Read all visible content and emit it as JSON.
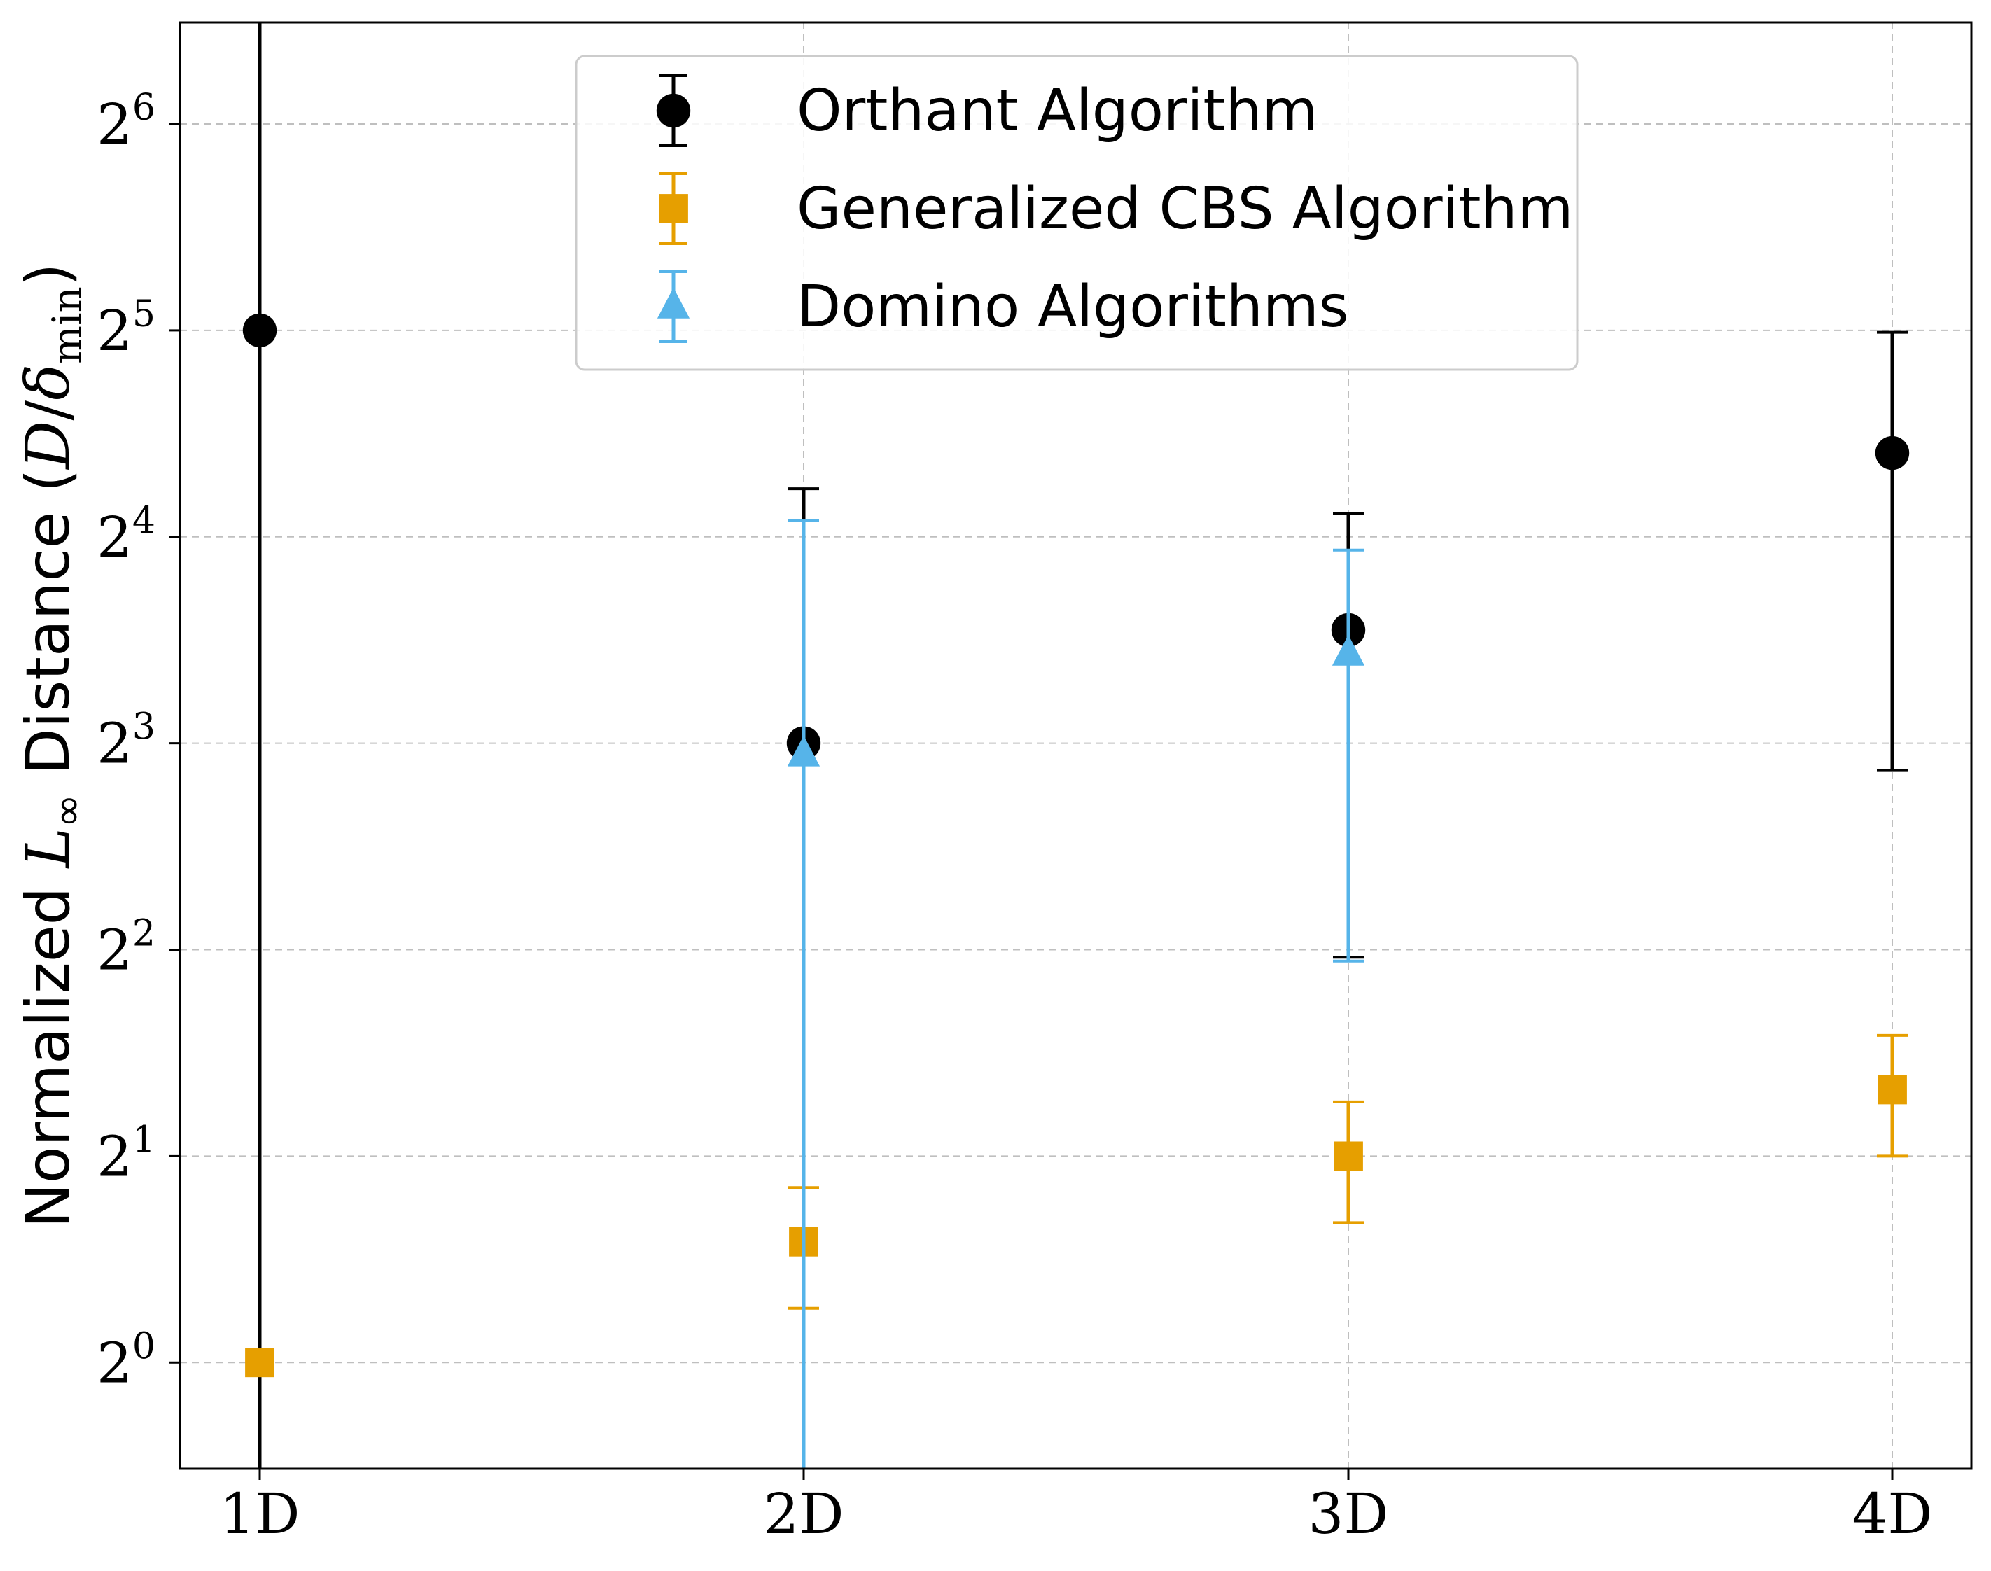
{
  "chart_data": {
    "type": "scatter",
    "title": "",
    "xlabel": "",
    "ylabel": {
      "prefix": "Normalized ",
      "math_var": "L",
      "math_sub": "∞",
      "middle": " Distance (",
      "num": "D",
      "slash": "/",
      "delta": "δ",
      "delta_sub": "min",
      "suffix": ")"
    },
    "y_scale": "log2",
    "ylim": [
      0.7,
      90
    ],
    "y_ticks": [
      {
        "value": 1,
        "base": "2",
        "exp": "0"
      },
      {
        "value": 2,
        "base": "2",
        "exp": "1"
      },
      {
        "value": 4,
        "base": "2",
        "exp": "2"
      },
      {
        "value": 8,
        "base": "2",
        "exp": "3"
      },
      {
        "value": 16,
        "base": "2",
        "exp": "4"
      },
      {
        "value": 32,
        "base": "2",
        "exp": "5"
      },
      {
        "value": 64,
        "base": "2",
        "exp": "6"
      }
    ],
    "categories": [
      "1D",
      "2D",
      "3D",
      "4D"
    ],
    "grid": true,
    "legend_position": "top-center",
    "series": [
      {
        "name": "Orthant Algorithm",
        "marker": "circle",
        "color": "#000000",
        "points": [
          {
            "category": "1D",
            "value": 32,
            "lower": 0.5,
            "upper": 200
          },
          {
            "category": "2D",
            "value": 8,
            "lower": 0.5,
            "upper": 18.8
          },
          {
            "category": "3D",
            "value": 11.7,
            "lower": 3.9,
            "upper": 17.3
          },
          {
            "category": "4D",
            "value": 21.2,
            "lower": 7.3,
            "upper": 31.8
          }
        ]
      },
      {
        "name": "Generalized CBS Algorithm",
        "marker": "square",
        "color": "#E69F00",
        "points": [
          {
            "category": "1D",
            "value": 1.0,
            "lower": 1.0,
            "upper": 1.0
          },
          {
            "category": "2D",
            "value": 1.5,
            "lower": 1.2,
            "upper": 1.8
          },
          {
            "category": "3D",
            "value": 2.0,
            "lower": 1.6,
            "upper": 2.4
          },
          {
            "category": "4D",
            "value": 2.5,
            "lower": 2.0,
            "upper": 3.0
          }
        ]
      },
      {
        "name": "Domino Algorithms",
        "marker": "triangle",
        "color": "#56B4E9",
        "points": [
          {
            "category": "2D",
            "value": 7.7,
            "lower": 0.5,
            "upper": 16.9
          },
          {
            "category": "3D",
            "value": 10.8,
            "lower": 3.85,
            "upper": 15.3
          }
        ]
      }
    ]
  }
}
